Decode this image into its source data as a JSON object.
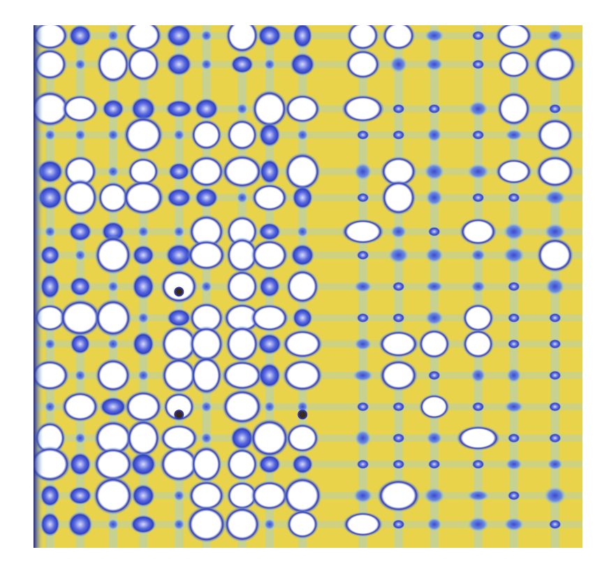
{
  "image": {
    "subject": "interference-pattern",
    "colors": {
      "background": "#ffffff",
      "field_yellow": "#e8d34a",
      "field_light_blue": "#9fd0e6",
      "spot_blue": "#2e3fc4",
      "spot_dark_blue": "#1a1f8a",
      "spot_white": "#ffffff",
      "edge_blue": "#2b36b8",
      "hot_core": "#3b2a1a"
    },
    "grid_columns": [
      0.03,
      0.085,
      0.145,
      0.2,
      0.265,
      0.315,
      0.38,
      0.43,
      0.49,
      0.6,
      0.665,
      0.73,
      0.81,
      0.875,
      0.95
    ],
    "grid_rows": [
      0.02,
      0.075,
      0.16,
      0.21,
      0.28,
      0.33,
      0.395,
      0.44,
      0.5,
      0.56,
      0.61,
      0.67,
      0.73,
      0.79,
      0.84,
      0.9,
      0.955
    ]
  }
}
